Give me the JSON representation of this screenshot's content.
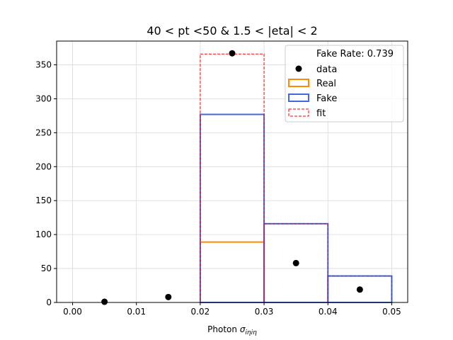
{
  "chart_data": {
    "type": "histogram",
    "title": "40 < pt <50 & 1.5 < |eta| < 2",
    "xlabel_prefix": "Photon ",
    "xlabel_symbol": "σ",
    "xlabel_subscript": "iηiη",
    "ylabel": "",
    "xlim": [
      -0.0025,
      0.0525
    ],
    "ylim": [
      0,
      385
    ],
    "xticks": [
      0.0,
      0.01,
      0.02,
      0.03,
      0.04,
      0.05
    ],
    "xtick_labels": [
      "0.00",
      "0.01",
      "0.02",
      "0.03",
      "0.04",
      "0.05"
    ],
    "yticks": [
      0,
      50,
      100,
      150,
      200,
      250,
      300,
      350
    ],
    "ytick_labels": [
      "0",
      "50",
      "100",
      "150",
      "200",
      "250",
      "300",
      "350"
    ],
    "grid": true,
    "bin_edges": [
      0.0,
      0.01,
      0.02,
      0.03,
      0.04,
      0.05
    ],
    "series": [
      {
        "name": "Real",
        "kind": "step",
        "color": "#ff8c00",
        "values": [
          0,
          0,
          89,
          0,
          0
        ]
      },
      {
        "name": "Fake",
        "kind": "step",
        "color": "#4169e1",
        "values": [
          0,
          0,
          277,
          116,
          39
        ]
      },
      {
        "name": "fit",
        "kind": "step-dashed",
        "color": "#ff0000",
        "values": [
          0,
          0,
          366,
          116,
          39
        ]
      },
      {
        "name": "data",
        "kind": "points",
        "color": "#000000",
        "x": [
          0.005,
          0.015,
          0.025,
          0.035,
          0.045
        ],
        "y": [
          1,
          8,
          367,
          58,
          19
        ]
      }
    ],
    "legend": {
      "placement": "top-right",
      "header": "Fake Rate: 0.739",
      "entries": [
        "data",
        "Real",
        "Fake",
        "fit"
      ]
    }
  }
}
